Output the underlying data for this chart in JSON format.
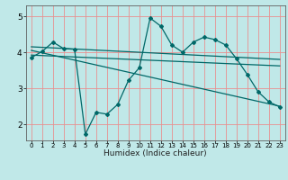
{
  "title": "",
  "xlabel": "Humidex (Indice chaleur)",
  "bg_color": "#c0e8e8",
  "line_color": "#006868",
  "grid_color": "#e89090",
  "x_ticks": [
    0,
    1,
    2,
    3,
    4,
    5,
    6,
    7,
    8,
    9,
    10,
    11,
    12,
    13,
    14,
    15,
    16,
    17,
    18,
    19,
    20,
    21,
    22,
    23
  ],
  "y_ticks": [
    2,
    3,
    4,
    5
  ],
  "ylim": [
    1.55,
    5.3
  ],
  "xlim": [
    -0.5,
    23.5
  ],
  "line1_x": [
    0,
    1,
    2,
    3,
    4,
    5,
    6,
    7,
    8,
    9,
    10,
    11,
    12,
    13,
    14,
    15,
    16,
    17,
    18,
    19,
    20,
    21,
    22,
    23
  ],
  "line1_y": [
    3.85,
    4.02,
    4.28,
    4.1,
    4.08,
    1.72,
    2.33,
    2.28,
    2.55,
    3.22,
    3.57,
    4.95,
    4.72,
    4.2,
    4.0,
    4.28,
    4.42,
    4.35,
    4.2,
    3.82,
    3.38,
    2.9,
    2.62,
    2.48
  ],
  "line2_x": [
    0,
    23
  ],
  "line2_y": [
    4.05,
    2.5
  ],
  "line3_x": [
    0,
    23
  ],
  "line3_y": [
    3.92,
    3.62
  ],
  "line4_x": [
    0,
    23
  ],
  "line4_y": [
    4.15,
    3.8
  ],
  "xlabel_fontsize": 6.5,
  "ytick_fontsize": 6.5,
  "xtick_fontsize": 5.0
}
